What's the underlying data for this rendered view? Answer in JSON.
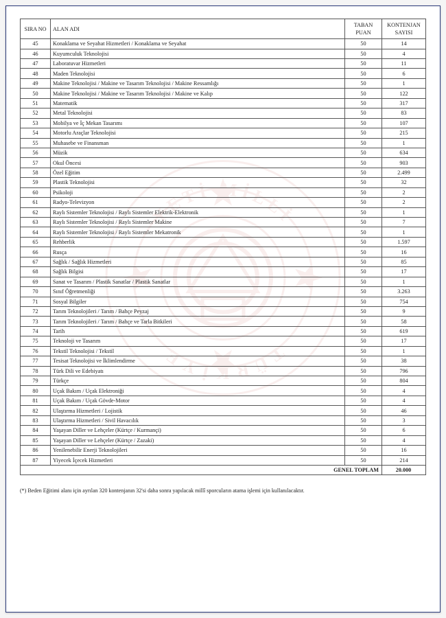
{
  "columns": {
    "sira_no": "SIRA NO",
    "alan_adi": "ALAN ADI",
    "taban_puan": "TABAN PUAN",
    "kontenjan": "KONTENJAN SAYISI"
  },
  "rows": [
    {
      "no": "45",
      "alan": "Konaklama ve Seyahat Hizmetleri / Konaklama ve Seyahat",
      "puan": "50",
      "kont": "14"
    },
    {
      "no": "46",
      "alan": "Kuyumculuk Teknolojisi",
      "puan": "50",
      "kont": "4"
    },
    {
      "no": "47",
      "alan": "Laboratuvar Hizmetleri",
      "puan": "50",
      "kont": "11"
    },
    {
      "no": "48",
      "alan": "Maden Teknolojisi",
      "puan": "50",
      "kont": "6"
    },
    {
      "no": "49",
      "alan": "Makine Teknolojisi / Makine ve Tasarım Teknolojisi / Makine Ressamlığı",
      "puan": "50",
      "kont": "1"
    },
    {
      "no": "50",
      "alan": "Makine Teknolojisi / Makine ve Tasarım Teknolojisi / Makine ve Kalıp",
      "puan": "50",
      "kont": "122"
    },
    {
      "no": "51",
      "alan": "Matematik",
      "puan": "50",
      "kont": "317"
    },
    {
      "no": "52",
      "alan": "Metal Teknolojisi",
      "puan": "50",
      "kont": "83"
    },
    {
      "no": "53",
      "alan": "Mobilya ve İç Mekan Tasarımı",
      "puan": "50",
      "kont": "107"
    },
    {
      "no": "54",
      "alan": "Motorlu Araçlar Teknolojisi",
      "puan": "50",
      "kont": "215"
    },
    {
      "no": "55",
      "alan": "Muhasebe ve Finansman",
      "puan": "50",
      "kont": "1"
    },
    {
      "no": "56",
      "alan": "Müzik",
      "puan": "50",
      "kont": "634"
    },
    {
      "no": "57",
      "alan": "Okul Öncesi",
      "puan": "50",
      "kont": "903"
    },
    {
      "no": "58",
      "alan": "Özel Eğitim",
      "puan": "50",
      "kont": "2.499"
    },
    {
      "no": "59",
      "alan": "Plastik Teknolojisi",
      "puan": "50",
      "kont": "32"
    },
    {
      "no": "60",
      "alan": "Psikoloji",
      "puan": "50",
      "kont": "2"
    },
    {
      "no": "61",
      "alan": "Radyo-Televizyon",
      "puan": "50",
      "kont": "2"
    },
    {
      "no": "62",
      "alan": "Raylı Sistemler Teknolojisi / Raylı Sistemler Elektrik-Elektronik",
      "puan": "50",
      "kont": "1"
    },
    {
      "no": "63",
      "alan": "Raylı Sistemler Teknolojisi / Raylı Sistemler Makine",
      "puan": "50",
      "kont": "7"
    },
    {
      "no": "64",
      "alan": "Raylı Sistemler Teknolojisi / Raylı Sistemler Mekatronik",
      "puan": "50",
      "kont": "1"
    },
    {
      "no": "65",
      "alan": "Rehberlik",
      "puan": "50",
      "kont": "1.597"
    },
    {
      "no": "66",
      "alan": "Rusça",
      "puan": "50",
      "kont": "16"
    },
    {
      "no": "67",
      "alan": "Sağlık / Sağlık Hizmetleri",
      "puan": "50",
      "kont": "85"
    },
    {
      "no": "68",
      "alan": "Sağlık Bilgisi",
      "puan": "50",
      "kont": "17"
    },
    {
      "no": "69",
      "alan": "Sanat ve Tasarım / Plastik Sanatlar / Plastik Sanatlar",
      "puan": "50",
      "kont": "1"
    },
    {
      "no": "70",
      "alan": "Sınıf Öğretmenliği",
      "puan": "50",
      "kont": "3.263"
    },
    {
      "no": "71",
      "alan": "Sosyal Bilgiler",
      "puan": "50",
      "kont": "754"
    },
    {
      "no": "72",
      "alan": "Tarım Teknolojileri / Tarım / Bahçe Peyzaj",
      "puan": "50",
      "kont": "9"
    },
    {
      "no": "73",
      "alan": "Tarım Teknolojileri / Tarım / Bahçe ve Tarla Bitkileri",
      "puan": "50",
      "kont": "58"
    },
    {
      "no": "74",
      "alan": "Tarih",
      "puan": "50",
      "kont": "619"
    },
    {
      "no": "75",
      "alan": "Teknoloji ve Tasarım",
      "puan": "50",
      "kont": "17"
    },
    {
      "no": "76",
      "alan": "Tekstil Teknolojisi / Tekstil",
      "puan": "50",
      "kont": "1"
    },
    {
      "no": "77",
      "alan": "Tesisat Teknolojisi ve İklimlendirme",
      "puan": "50",
      "kont": "38"
    },
    {
      "no": "78",
      "alan": "Türk Dili ve Edebiyatı",
      "puan": "50",
      "kont": "796"
    },
    {
      "no": "79",
      "alan": "Türkçe",
      "puan": "50",
      "kont": "804"
    },
    {
      "no": "80",
      "alan": "Uçak Bakım / Uçak Elektroniği",
      "puan": "50",
      "kont": "4"
    },
    {
      "no": "81",
      "alan": "Uçak Bakım / Uçak Gövde-Motor",
      "puan": "50",
      "kont": "4"
    },
    {
      "no": "82",
      "alan": "Ulaştırma Hizmetleri / Lojistik",
      "puan": "50",
      "kont": "46"
    },
    {
      "no": "83",
      "alan": "Ulaştırma Hizmetleri / Sivil Havacılık",
      "puan": "50",
      "kont": "3"
    },
    {
      "no": "84",
      "alan": "Yaşayan Diller ve Lehçeler (Kürtçe / Kurmançi)",
      "puan": "50",
      "kont": "6"
    },
    {
      "no": "85",
      "alan": "Yaşayan Diller ve Lehçeler (Kürtçe / Zazaki)",
      "puan": "50",
      "kont": "4"
    },
    {
      "no": "86",
      "alan": "Yenilenebilir Enerji Teknolojileri",
      "puan": "50",
      "kont": "16"
    },
    {
      "no": "87",
      "alan": "Yiyecek İçecek Hizmetleri",
      "puan": "50",
      "kont": "214"
    }
  ],
  "total": {
    "label": "GENEL TOPLAM",
    "value": "20.000"
  },
  "footnote": "(*) Beden Eğitimi alanı için ayrılan 320 kontenjanın 32'si daha sonra yapılacak millî sporcuların atama işlemi için kullanılacaktır.",
  "watermark_color": "#c0392b"
}
